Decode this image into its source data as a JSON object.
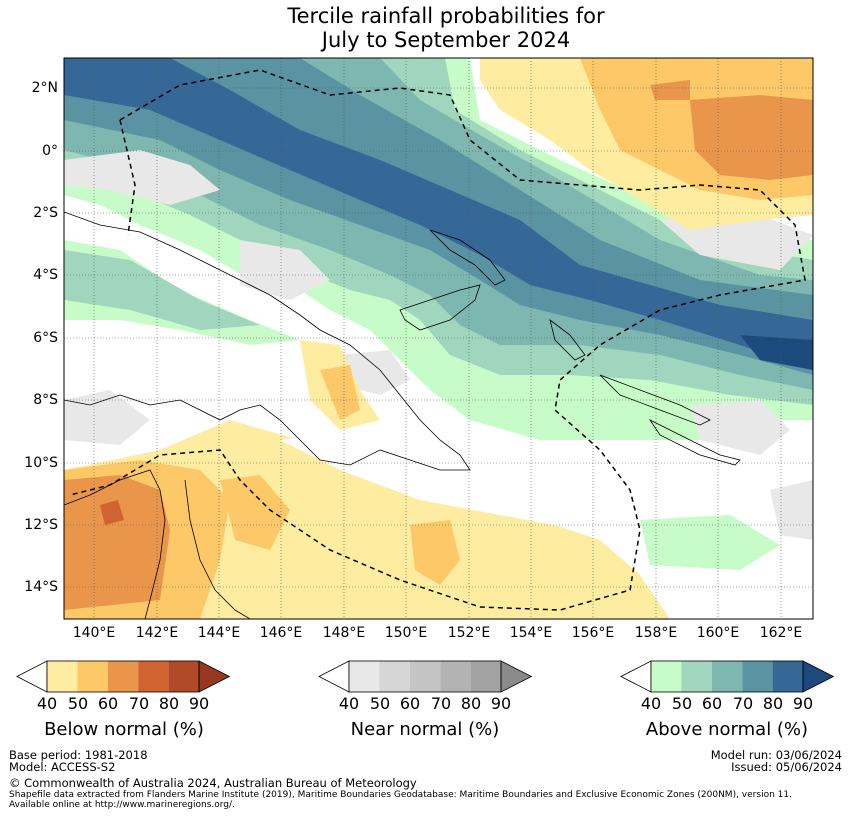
{
  "title": {
    "line1": "Tercile rainfall probabilities for",
    "line2": "July to September 2024"
  },
  "map": {
    "latitudes": [
      "2°N",
      "0°",
      "2°S",
      "4°S",
      "6°S",
      "8°S",
      "10°S",
      "12°S",
      "14°S"
    ],
    "longitudes": [
      "140°E",
      "142°E",
      "144°E",
      "146°E",
      "148°E",
      "150°E",
      "152°E",
      "154°E",
      "156°E",
      "158°E",
      "160°E",
      "162°E"
    ]
  },
  "colorbars": {
    "below": {
      "title": "Below normal (%)",
      "ticks": [
        "40",
        "50",
        "60",
        "70",
        "80",
        "90"
      ],
      "colors": [
        "#ffffff",
        "#feeda0",
        "#fdc968",
        "#e9964a",
        "#d16331",
        "#b04a28",
        "#983720"
      ]
    },
    "near": {
      "title": "Near normal (%)",
      "ticks": [
        "40",
        "50",
        "60",
        "70",
        "80",
        "90"
      ],
      "colors": [
        "#ffffff",
        "#e8e8e8",
        "#d6d6d6",
        "#c4c4c4",
        "#b3b3b3",
        "#a2a2a2",
        "#8a8a8a"
      ]
    },
    "above": {
      "title": "Above normal (%)",
      "ticks": [
        "40",
        "50",
        "60",
        "70",
        "80",
        "90"
      ],
      "colors": [
        "#ffffff",
        "#c7fcc8",
        "#9fd6bd",
        "#7db7af",
        "#5a94a3",
        "#356896",
        "#1c4a7d"
      ]
    }
  },
  "footer": {
    "base_period": "Base period: 1981-2018",
    "model": "Model: ACCESS-S2",
    "model_run": "Model run: 03/06/2024",
    "issued": "Issued: 05/06/2024",
    "copyright": "© Commonwealth of Australia 2024, Australian Bureau of Meteorology",
    "shapefile_note_1": "Shapefile data extracted from Flanders Marine Institute (2019), Maritime Boundaries Geodatabase: Maritime Boundaries and Exclusive Economic Zones (200NM), version 11.",
    "shapefile_note_2": "Available online at http://www.marineregions.org/."
  }
}
